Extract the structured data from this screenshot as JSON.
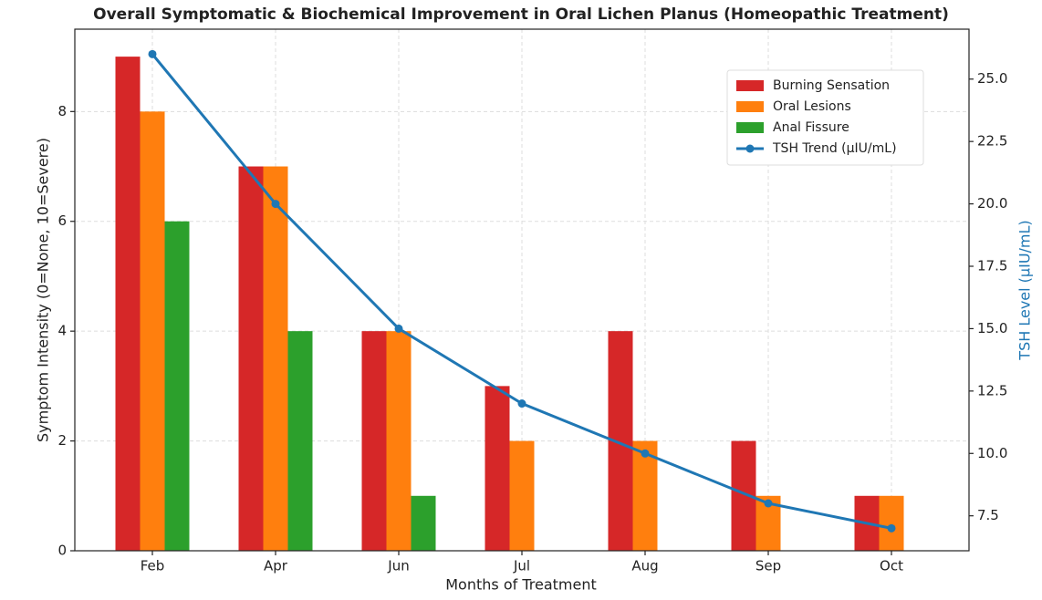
{
  "chart_data": {
    "type": "bar",
    "title": "Overall Symptomatic & Biochemical Improvement in Oral Lichen Planus (Homeopathic Treatment)",
    "x_label": "Months of Treatment",
    "y_label": "Symptom Intensity (0=None, 10=Severe)",
    "y2_label": "TSH Level (µIU/mL)",
    "categories": [
      "Feb",
      "Apr",
      "Jun",
      "Jul",
      "Aug",
      "Sep",
      "Oct"
    ],
    "series": [
      {
        "name": "Burning Sensation",
        "color": "#d62728",
        "values": [
          9,
          7,
          4,
          3,
          4,
          2,
          1
        ]
      },
      {
        "name": "Oral Lesions",
        "color": "#ff7f0e",
        "values": [
          8,
          7,
          4,
          2,
          2,
          1,
          1
        ]
      },
      {
        "name": "Anal Fissure",
        "color": "#2ca02c",
        "values": [
          6,
          4,
          1,
          0,
          0,
          0,
          0
        ]
      },
      {
        "name": "TSH Trend (µIU/mL)",
        "color": "#1f77b4",
        "type": "line",
        "axis": "y2",
        "values": [
          26,
          20,
          15,
          12,
          10,
          8,
          7
        ]
      }
    ],
    "ylim": [
      0,
      9.5
    ],
    "yticks": [
      0,
      2,
      4,
      6,
      8
    ],
    "y2lim": [
      6.1,
      27.0
    ],
    "y2ticks": [
      {
        "value": 7.5,
        "label": "7.5"
      },
      {
        "value": 10,
        "label": "10.0"
      },
      {
        "value": 12.5,
        "label": "12.5"
      },
      {
        "value": 15,
        "label": "15.0"
      },
      {
        "value": 17.5,
        "label": "17.5"
      },
      {
        "value": 20,
        "label": "20.0"
      },
      {
        "value": 22.5,
        "label": "22.5"
      },
      {
        "value": 25,
        "label": "25.0"
      }
    ],
    "grid": true,
    "legend": "upper right"
  }
}
